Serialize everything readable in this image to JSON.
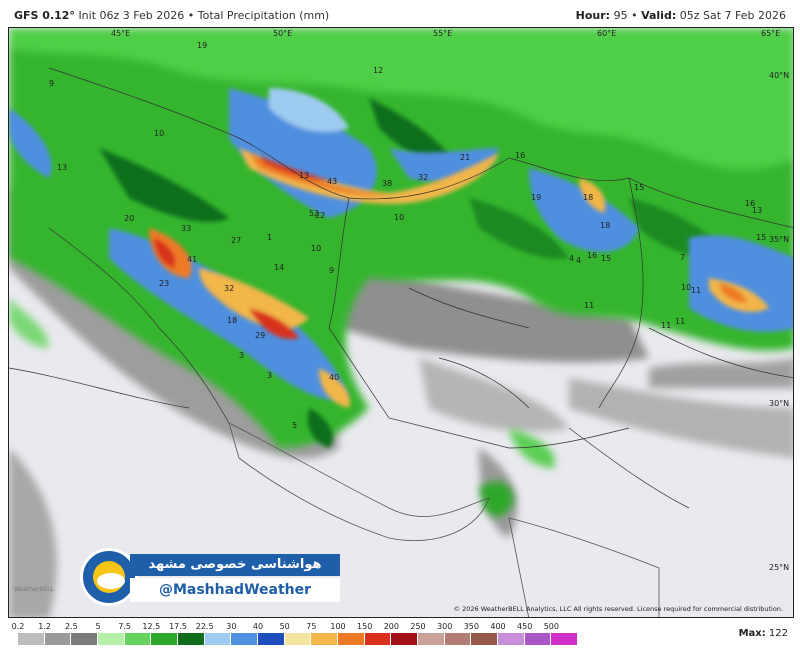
{
  "header": {
    "model": "GFS 0.12°",
    "init": "Init 06z 3 Feb 2026",
    "product": "Total Precipitation (mm)",
    "hour_label": "Hour:",
    "hour_value": "95",
    "valid_label": "Valid:",
    "valid_value": "05z Sat 7 Feb 2026"
  },
  "map": {
    "copyright": "© 2026 WeatherBELL Analytics, LLC  All rights reserved. License required for commercial distribution.",
    "coords": {
      "lon45": "45°E",
      "lon50": "50°E",
      "lon55": "55°E",
      "lon60": "60°E",
      "lon65": "65°E",
      "lat40": "40°N",
      "lat35": "35°N",
      "lat30": "30°N",
      "lat25": "25°N"
    },
    "values": [
      "19",
      "9",
      "10",
      "13",
      "20",
      "33",
      "41",
      "23",
      "27",
      "32",
      "18",
      "29",
      "40",
      "3",
      "3",
      "5",
      "13",
      "43",
      "38",
      "32",
      "21",
      "52",
      "22",
      "10",
      "18",
      "9",
      "14",
      "16",
      "10",
      "15",
      "19",
      "18",
      "16",
      "13",
      "4",
      "11",
      "7",
      "10",
      "11",
      "16",
      "15",
      "11",
      "11",
      "12",
      "15",
      "4",
      "1"
    ]
  },
  "watermark": {
    "title": "هواشناسی خصوصی مشهد",
    "handle": "@MashhadWeather",
    "small": "WeatherBELL"
  },
  "legend": {
    "ticks": [
      "0.2",
      "1.2",
      "2.5",
      "5",
      "7.5",
      "12.5",
      "17.5",
      "22.5",
      "30",
      "40",
      "50",
      "75",
      "100",
      "150",
      "200",
      "250",
      "300",
      "350",
      "400",
      "450",
      "500"
    ],
    "colors": [
      "#bdbdbd",
      "#9a9a9a",
      "#7a7a7a",
      "#b6f0a8",
      "#66d25e",
      "#2ea82a",
      "#0e6e1c",
      "#9ecbf0",
      "#4f8fe0",
      "#1f4fbf",
      "#f5e3a0",
      "#f2b64a",
      "#ee7a25",
      "#d8301c",
      "#a3121a",
      "#c9a09a",
      "#b27d74",
      "#96584b",
      "#c78fd8",
      "#a957c7",
      "#d02ec8"
    ],
    "max_label": "Max:",
    "max_value": "122"
  }
}
